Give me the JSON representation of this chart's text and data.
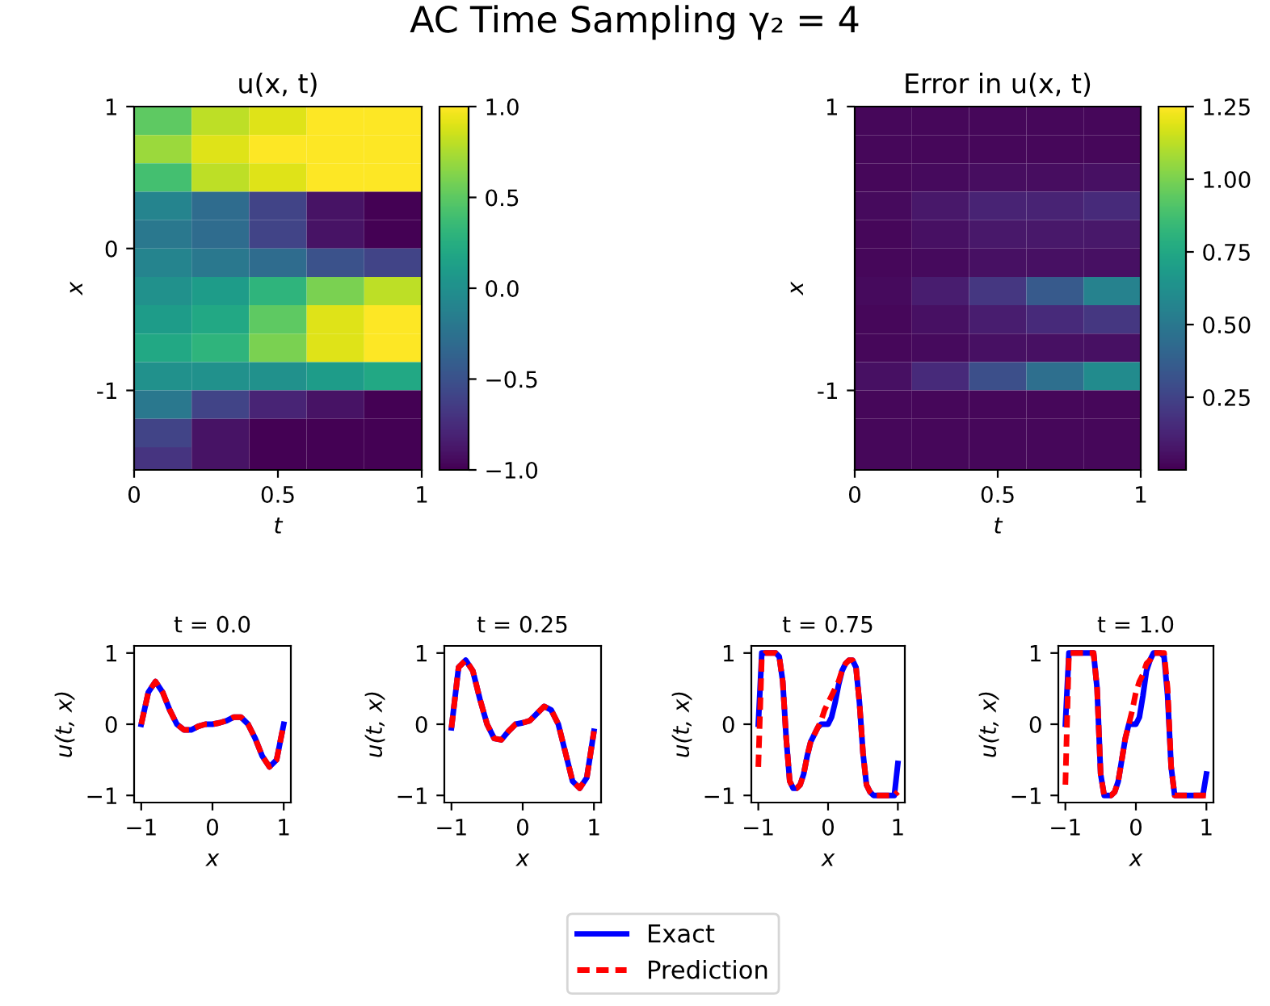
{
  "chart_data": [
    {
      "type": "heatmap",
      "title": "u(x, t)",
      "xlabel": "t",
      "ylabel": "x",
      "annotations": [
        "AC Time Sampling γ₂ = 4"
      ],
      "x": [
        0.1,
        0.3,
        0.5,
        0.7,
        0.9
      ],
      "y": [
        0.9,
        0.7,
        0.5,
        0.3,
        0.1,
        -0.1,
        -0.3,
        -0.5,
        -0.7,
        -0.9,
        -1.1,
        -1.3,
        -1.5
      ],
      "xlim": [
        0,
        1
      ],
      "ylim": [
        -1.56,
        1
      ],
      "xticks": [
        0,
        0.5,
        1
      ],
      "yticks": [
        1,
        0,
        -1
      ],
      "clim": [
        -1,
        1
      ],
      "cticks": [
        {
          "value": -1,
          "label": "−1.0"
        },
        {
          "value": -0.5,
          "label": "−0.5"
        },
        {
          "value": 0,
          "label": "0.0"
        },
        {
          "value": 0.5,
          "label": "0.5"
        },
        {
          "value": 1,
          "label": "1.0"
        }
      ],
      "cells": [
        [
          0.5,
          0.8,
          0.9,
          1,
          1
        ],
        [
          0.7,
          0.9,
          1,
          1,
          1
        ],
        [
          0.4,
          0.8,
          0.9,
          1,
          1
        ],
        [
          -0.1,
          -0.3,
          -0.6,
          -0.9,
          -1
        ],
        [
          -0.2,
          -0.3,
          -0.6,
          -0.9,
          -1
        ],
        [
          -0.1,
          -0.2,
          -0.3,
          -0.5,
          -0.6
        ],
        [
          0,
          0.1,
          0.3,
          0.6,
          0.8
        ],
        [
          0.1,
          0.2,
          0.5,
          0.9,
          1
        ],
        [
          0.2,
          0.3,
          0.6,
          0.9,
          1
        ],
        [
          0,
          0,
          0,
          0.1,
          0.2
        ],
        [
          -0.2,
          -0.6,
          -0.8,
          -0.9,
          -1
        ],
        [
          -0.6,
          -0.9,
          -1,
          -1,
          -1
        ],
        [
          -0.7,
          -0.9,
          -1,
          -1,
          -1
        ]
      ]
    },
    {
      "type": "heatmap",
      "title": "Error in u(x, t)",
      "xlabel": "t",
      "ylabel": "x",
      "x": [
        0.1,
        0.3,
        0.5,
        0.7,
        0.9
      ],
      "y": [
        0.9,
        0.7,
        0.5,
        0.3,
        0.1,
        -0.1,
        -0.3,
        -0.5,
        -0.7,
        -0.9,
        -1.1,
        -1.3,
        -1.5
      ],
      "xlim": [
        0,
        1
      ],
      "ylim": [
        -1.56,
        1
      ],
      "xticks": [
        0,
        0.5,
        1
      ],
      "yticks": [
        1,
        -1
      ],
      "clim": [
        0,
        1.25
      ],
      "cticks": [
        {
          "value": 0.25,
          "label": "0.25"
        },
        {
          "value": 0.5,
          "label": "0.50"
        },
        {
          "value": 0.75,
          "label": "0.75"
        },
        {
          "value": 1,
          "label": "1.00"
        },
        {
          "value": 1.25,
          "label": "1.25"
        }
      ],
      "cells": [
        [
          0.02,
          0.02,
          0.02,
          0.02,
          0.02
        ],
        [
          0.02,
          0.02,
          0.02,
          0.02,
          0.02
        ],
        [
          0.02,
          0.03,
          0.04,
          0.04,
          0.05
        ],
        [
          0.03,
          0.08,
          0.12,
          0.12,
          0.15
        ],
        [
          0.02,
          0.05,
          0.08,
          0.08,
          0.08
        ],
        [
          0.02,
          0.03,
          0.05,
          0.05,
          0.05
        ],
        [
          0.03,
          0.1,
          0.2,
          0.35,
          0.55
        ],
        [
          0.02,
          0.05,
          0.1,
          0.15,
          0.2
        ],
        [
          0.02,
          0.03,
          0.05,
          0.05,
          0.05
        ],
        [
          0.05,
          0.15,
          0.3,
          0.45,
          0.6
        ],
        [
          0.02,
          0.02,
          0.02,
          0.02,
          0.02
        ],
        [
          0.02,
          0.02,
          0.02,
          0.02,
          0.02
        ],
        [
          0.02,
          0.02,
          0.02,
          0.02,
          0.02
        ]
      ]
    },
    {
      "type": "line",
      "title": "t = 0.0",
      "xlabel": "x",
      "ylabel": "u(t, x)",
      "xlim": [
        -1.1,
        1.1
      ],
      "ylim": [
        -1.1,
        1.1
      ],
      "xticks": [
        -1,
        0,
        1
      ],
      "yticks": [
        -1,
        0,
        1
      ],
      "legend": "bottom",
      "x": [
        -1,
        -0.9,
        -0.8,
        -0.7,
        -0.6,
        -0.5,
        -0.4,
        -0.3,
        -0.2,
        -0.1,
        0,
        0.1,
        0.2,
        0.3,
        0.4,
        0.5,
        0.6,
        0.7,
        0.8,
        0.9,
        1
      ],
      "series": [
        {
          "name": "Exact",
          "color": "#0000ff",
          "line_style": "solid",
          "values": [
            0,
            0.45,
            0.6,
            0.45,
            0.2,
            0.0,
            -0.08,
            -0.08,
            -0.03,
            0.0,
            0.0,
            0.02,
            0.05,
            0.1,
            0.1,
            0,
            -0.2,
            -0.45,
            -0.6,
            -0.5,
            0
          ]
        },
        {
          "name": "Prediction",
          "color": "#ff0000",
          "line_style": "dashed",
          "values": [
            0,
            0.45,
            0.6,
            0.45,
            0.2,
            0.0,
            -0.08,
            -0.08,
            -0.03,
            0.0,
            0.0,
            0.02,
            0.05,
            0.1,
            0.1,
            0,
            -0.2,
            -0.45,
            -0.6,
            -0.5,
            0
          ]
        }
      ]
    },
    {
      "type": "line",
      "title": "t = 0.25",
      "xlabel": "x",
      "ylabel": "u(t, x)",
      "xlim": [
        -1.1,
        1.1
      ],
      "ylim": [
        -1.1,
        1.1
      ],
      "xticks": [
        -1,
        0,
        1
      ],
      "yticks": [
        -1,
        0,
        1
      ],
      "x": [
        -1,
        -0.9,
        -0.8,
        -0.7,
        -0.6,
        -0.5,
        -0.4,
        -0.3,
        -0.2,
        -0.1,
        0,
        0.1,
        0.2,
        0.3,
        0.4,
        0.5,
        0.6,
        0.7,
        0.8,
        0.9,
        1
      ],
      "series": [
        {
          "color": "#0000ff",
          "line_style": "solid",
          "values": [
            -0.05,
            0.8,
            0.9,
            0.75,
            0.35,
            0.0,
            -0.2,
            -0.22,
            -0.1,
            0,
            0.02,
            0.05,
            0.15,
            0.25,
            0.2,
            0,
            -0.4,
            -0.8,
            -0.9,
            -0.75,
            -0.1
          ]
        },
        {
          "color": "#ff0000",
          "line_style": "dashed",
          "values": [
            -0.05,
            0.8,
            0.9,
            0.75,
            0.35,
            0.0,
            -0.2,
            -0.22,
            -0.1,
            0,
            0.02,
            0.05,
            0.15,
            0.25,
            0.2,
            0,
            -0.4,
            -0.8,
            -0.9,
            -0.75,
            -0.1
          ]
        }
      ]
    },
    {
      "type": "line",
      "title": "t = 0.75",
      "xlabel": "x",
      "ylabel": "u(t, x)",
      "xlim": [
        -1.1,
        1.1
      ],
      "ylim": [
        -1.1,
        1.1
      ],
      "xticks": [
        -1,
        0,
        1
      ],
      "yticks": [
        -1,
        0,
        1
      ],
      "x": [
        -1,
        -0.95,
        -0.9,
        -0.85,
        -0.8,
        -0.75,
        -0.7,
        -0.65,
        -0.6,
        -0.55,
        -0.5,
        -0.45,
        -0.4,
        -0.35,
        -0.3,
        -0.25,
        -0.2,
        -0.15,
        -0.1,
        -0.05,
        0,
        0.05,
        0.1,
        0.15,
        0.2,
        0.25,
        0.3,
        0.35,
        0.4,
        0.45,
        0.5,
        0.55,
        0.6,
        0.65,
        0.7,
        0.75,
        0.8,
        0.85,
        0.9,
        0.95,
        1
      ],
      "series": [
        {
          "color": "#0000ff",
          "line_style": "solid",
          "values": [
            0.0,
            1,
            1,
            1,
            1,
            1,
            0.95,
            0.6,
            -0.2,
            -0.8,
            -0.9,
            -0.9,
            -0.85,
            -0.7,
            -0.45,
            -0.25,
            -0.15,
            -0.05,
            0.0,
            0.0,
            0.0,
            0.1,
            0.3,
            0.55,
            0.75,
            0.85,
            0.9,
            0.9,
            0.8,
            0.3,
            -0.4,
            -0.85,
            -0.95,
            -1,
            -1,
            -1,
            -1,
            -1,
            -1,
            -1,
            -0.55
          ]
        },
        {
          "color": "#ff0000",
          "line_style": "dashed",
          "values": [
            -0.6,
            0.95,
            1,
            1,
            1,
            1,
            0.95,
            0.6,
            -0.2,
            -0.8,
            -0.9,
            -0.9,
            -0.85,
            -0.7,
            -0.45,
            -0.25,
            -0.15,
            -0.05,
            0.05,
            0.2,
            0.3,
            0.4,
            0.5,
            0.6,
            0.75,
            0.85,
            0.9,
            0.9,
            0.8,
            0.3,
            -0.4,
            -0.85,
            -0.95,
            -1,
            -1,
            -1,
            -1,
            -1,
            -1,
            -1,
            -0.95
          ]
        }
      ]
    },
    {
      "type": "line",
      "title": "t = 1.0",
      "xlabel": "x",
      "ylabel": "u(t, x)",
      "xlim": [
        -1.1,
        1.1
      ],
      "ylim": [
        -1.1,
        1.1
      ],
      "xticks": [
        -1,
        0,
        1
      ],
      "yticks": [
        -1,
        0,
        1
      ],
      "x": [
        -1,
        -0.95,
        -0.9,
        -0.85,
        -0.8,
        -0.75,
        -0.7,
        -0.65,
        -0.6,
        -0.55,
        -0.5,
        -0.45,
        -0.4,
        -0.35,
        -0.3,
        -0.25,
        -0.2,
        -0.15,
        -0.1,
        -0.05,
        0,
        0.05,
        0.1,
        0.15,
        0.2,
        0.25,
        0.3,
        0.35,
        0.4,
        0.45,
        0.5,
        0.55,
        0.6,
        0.65,
        0.7,
        0.75,
        0.8,
        0.85,
        0.9,
        0.95,
        1
      ],
      "series": [
        {
          "color": "#0000ff",
          "line_style": "solid",
          "values": [
            0,
            1,
            1,
            1,
            1,
            1,
            1,
            1,
            1,
            0.5,
            -0.7,
            -1,
            -1,
            -1,
            -0.95,
            -0.8,
            -0.5,
            -0.2,
            0.0,
            0.0,
            0.0,
            0.1,
            0.4,
            0.75,
            0.9,
            1,
            1,
            1,
            0.95,
            0.4,
            -0.6,
            -1,
            -1,
            -1,
            -1,
            -1,
            -1,
            -1,
            -1,
            -1,
            -0.7
          ]
        },
        {
          "color": "#ff0000",
          "line_style": "dashed",
          "values": [
            -0.85,
            1,
            1,
            1,
            1,
            1,
            1,
            1,
            1,
            0.5,
            -0.7,
            -1,
            -1,
            -1,
            -0.95,
            -0.8,
            -0.5,
            -0.2,
            0.0,
            0.2,
            0.45,
            0.6,
            0.7,
            0.85,
            0.9,
            1,
            1,
            1,
            1,
            0.5,
            -0.6,
            -1,
            -1,
            -1,
            -1,
            -1,
            -1,
            -1,
            -1,
            -1,
            -1
          ]
        }
      ]
    }
  ]
}
